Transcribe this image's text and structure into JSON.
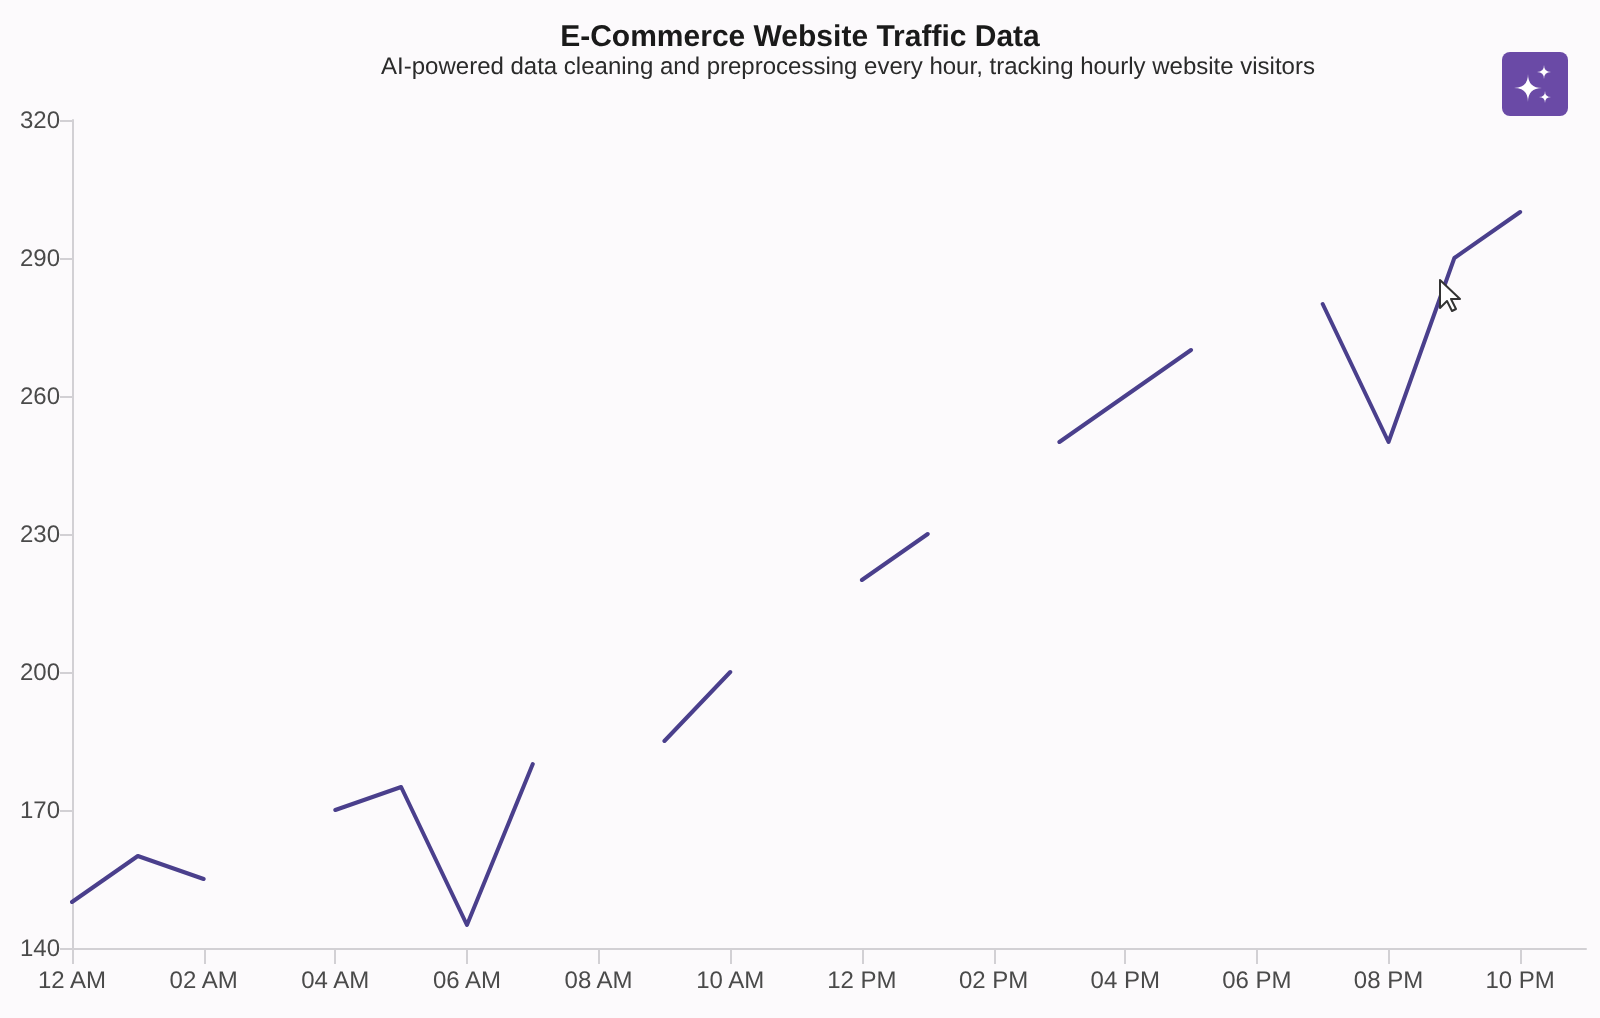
{
  "chart_data": {
    "type": "line",
    "title": "E-Commerce Website Traffic Data",
    "subtitle": "AI-powered data cleaning and preprocessing every hour, tracking hourly website visitors",
    "categories": [
      "12 AM",
      null,
      "02 AM",
      null,
      "04 AM",
      null,
      "06 AM",
      null,
      "08 AM",
      null,
      "10 AM",
      null,
      "12 PM",
      null,
      "02 PM",
      null,
      "04 PM",
      null,
      "06 PM",
      null,
      "08 PM",
      null,
      "10 PM",
      null
    ],
    "series": [
      {
        "color": "#4a3f8c",
        "values": [
          150,
          160,
          155,
          null,
          170,
          175,
          145,
          180,
          null,
          185,
          200,
          null,
          220,
          230,
          null,
          250,
          260,
          270,
          null,
          280,
          250,
          290,
          300,
          null
        ]
      }
    ],
    "ylim": [
      140,
      320
    ],
    "yticks": [
      140,
      170,
      200,
      230,
      260,
      290,
      320
    ],
    "marker": "none",
    "line_style": "solid"
  }
}
